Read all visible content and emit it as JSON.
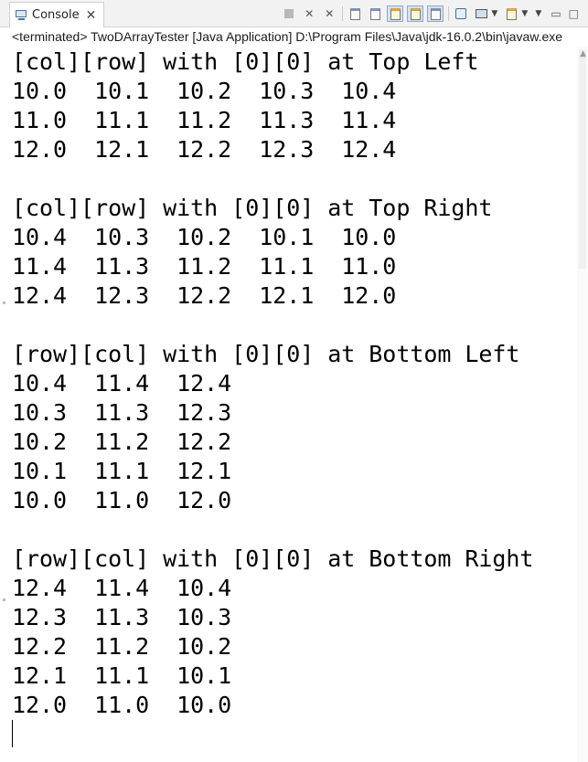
{
  "tab": {
    "label": "Console",
    "close": "✕"
  },
  "status": "<terminated> TwoDArrayTester [Java Application] D:\\Program Files\\Java\\jdk-16.0.2\\bin\\javaw.exe",
  "console_lines": [
    "[col][row] with [0][0] at Top Left",
    "10.0  10.1  10.2  10.3  10.4",
    "11.0  11.1  11.2  11.3  11.4",
    "12.0  12.1  12.2  12.3  12.4",
    "",
    "[col][row] with [0][0] at Top Right",
    "10.4  10.3  10.2  10.1  10.0",
    "11.4  11.3  11.2  11.1  11.0",
    "12.4  12.3  12.2  12.1  12.0",
    "",
    "[row][col] with [0][0] at Bottom Left",
    "10.4  11.4  12.4",
    "10.3  11.3  12.3",
    "10.2  11.2  12.2",
    "10.1  11.1  12.1",
    "10.0  11.0  12.0",
    "",
    "[row][col] with [0][0] at Bottom Right",
    "12.4  11.4  10.4",
    "12.3  11.3  10.3",
    "12.2  11.2  10.2",
    "12.1  11.1  10.1",
    "12.0  11.0  10.0"
  ],
  "toolbar_icons": [
    "terminate-icon",
    "remove-launch-icon",
    "remove-all-terminated-icon",
    "clear-console-icon",
    "scroll-lock-icon",
    "show-on-stdout-icon",
    "show-on-stderr-icon",
    "word-wrap-icon",
    "pin-console-icon",
    "display-selected-console-icon",
    "open-console-icon",
    "view-menu-icon",
    "minimize-icon",
    "maximize-icon"
  ],
  "colors": {
    "tab_bg": "#ffffff",
    "pressed": "#d5e1f2",
    "text": "#000000"
  }
}
